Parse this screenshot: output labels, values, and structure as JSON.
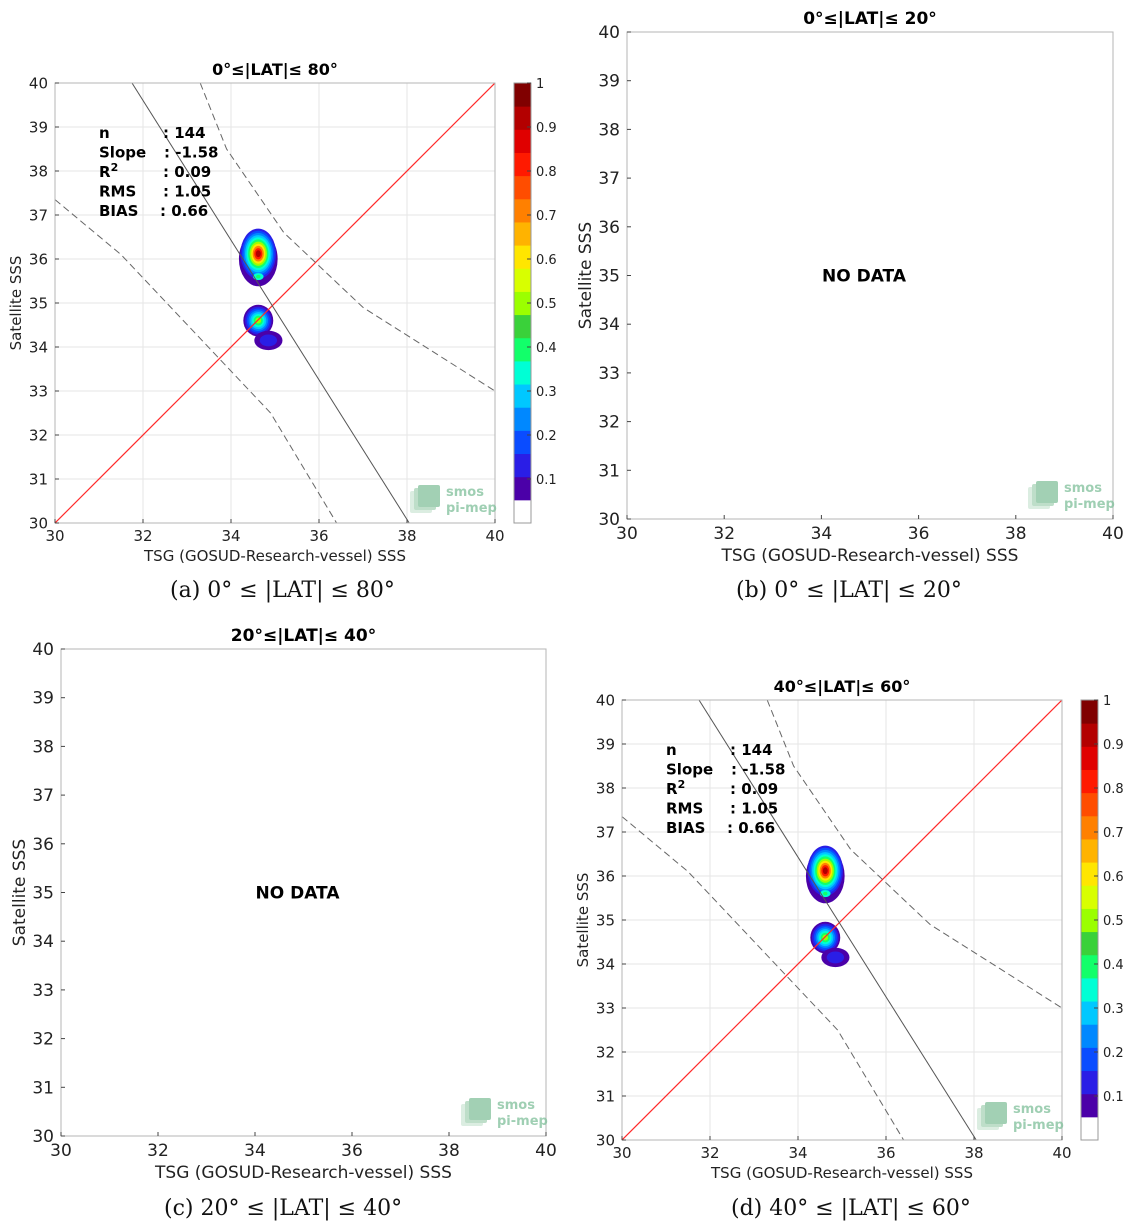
{
  "figure": {
    "watermark": {
      "line1": "smos",
      "line2": "pi-mep"
    },
    "colorbar": {
      "ticks": [
        "0.1",
        "0.2",
        "0.3",
        "0.4",
        "0.5",
        "0.6",
        "0.7",
        "0.8",
        "0.9",
        "1"
      ]
    }
  },
  "chart_data": [
    {
      "id": "a",
      "type": "heatmap",
      "title": "0°≤|LAT|≤ 80°",
      "caption": "(a) 0° ≤ |LAT| ≤ 80°",
      "xlabel": "TSG (GOSUD-Research-vessel) SSS",
      "ylabel": "Satellite SSS",
      "xlim": [
        30,
        40
      ],
      "ylim": [
        30,
        40
      ],
      "xticks": [
        "30",
        "32",
        "34",
        "36",
        "38",
        "40"
      ],
      "yticks": [
        "30",
        "31",
        "32",
        "33",
        "34",
        "35",
        "36",
        "37",
        "38",
        "39",
        "40"
      ],
      "grid": true,
      "stats": [
        {
          "label": "n",
          "value": ": 144"
        },
        {
          "label": "Slope",
          "value": ": -1.58"
        },
        {
          "label": "R²",
          "value": ": 0.09"
        },
        {
          "label": "RMS",
          "value": ": 1.05"
        },
        {
          "label": "BIAS",
          "value": ": 0.66"
        }
      ],
      "regression": {
        "slope": -1.58,
        "points": [
          [
            31.75,
            40
          ],
          [
            38.05,
            30
          ]
        ]
      },
      "confidence_upper": [
        [
          33.3,
          40
        ],
        [
          33.9,
          38.5
        ],
        [
          35.2,
          36.6
        ],
        [
          37.0,
          34.9
        ],
        [
          40,
          33.0
        ]
      ],
      "confidence_lower": [
        [
          30,
          37.35
        ],
        [
          31.5,
          36.1
        ],
        [
          33.2,
          34.3
        ],
        [
          34.9,
          32.5
        ],
        [
          36.4,
          30
        ]
      ],
      "identity_line": [
        [
          30,
          30
        ],
        [
          40,
          40
        ]
      ],
      "density_blobs": [
        {
          "x": 34.62,
          "y": 36.0,
          "peak": 1.0
        },
        {
          "x": 34.62,
          "y": 34.6,
          "peak": 0.7
        },
        {
          "x": 34.85,
          "y": 34.15,
          "peak": 0.15
        }
      ],
      "colorbar_range": [
        0,
        1
      ]
    },
    {
      "id": "b",
      "type": "scatter",
      "title": "0°≤|LAT|≤ 20°",
      "caption": "(b) 0° ≤ |LAT| ≤ 20°",
      "xlabel": "TSG (GOSUD-Research-vessel) SSS",
      "ylabel": "Satellite SSS",
      "xlim": [
        30,
        40
      ],
      "ylim": [
        30,
        40
      ],
      "xticks": [
        "30",
        "32",
        "34",
        "36",
        "38",
        "40"
      ],
      "yticks": [
        "30",
        "31",
        "32",
        "33",
        "34",
        "35",
        "36",
        "37",
        "38",
        "39",
        "40"
      ],
      "message": "NO DATA"
    },
    {
      "id": "c",
      "type": "scatter",
      "title": "20°≤|LAT|≤ 40°",
      "caption": "(c) 20° ≤ |LAT| ≤ 40°",
      "xlabel": "TSG (GOSUD-Research-vessel) SSS",
      "ylabel": "Satellite SSS",
      "xlim": [
        30,
        40
      ],
      "ylim": [
        30,
        40
      ],
      "xticks": [
        "30",
        "32",
        "34",
        "36",
        "38",
        "40"
      ],
      "yticks": [
        "30",
        "31",
        "32",
        "33",
        "34",
        "35",
        "36",
        "37",
        "38",
        "39",
        "40"
      ],
      "message": "NO DATA"
    },
    {
      "id": "d",
      "type": "heatmap",
      "title": "40°≤|LAT|≤ 60°",
      "caption": "(d) 40° ≤ |LAT| ≤ 60°",
      "xlabel": "TSG (GOSUD-Research-vessel) SSS",
      "ylabel": "Satellite SSS",
      "xlim": [
        30,
        40
      ],
      "ylim": [
        30,
        40
      ],
      "xticks": [
        "30",
        "32",
        "34",
        "36",
        "38",
        "40"
      ],
      "yticks": [
        "30",
        "31",
        "32",
        "33",
        "34",
        "35",
        "36",
        "37",
        "38",
        "39",
        "40"
      ],
      "grid": true,
      "stats": [
        {
          "label": "n",
          "value": ": 144"
        },
        {
          "label": "Slope",
          "value": ": -1.58"
        },
        {
          "label": "R²",
          "value": ": 0.09"
        },
        {
          "label": "RMS",
          "value": ": 1.05"
        },
        {
          "label": "BIAS",
          "value": ": 0.66"
        }
      ],
      "regression": {
        "slope": -1.58,
        "points": [
          [
            31.75,
            40
          ],
          [
            38.05,
            30
          ]
        ]
      },
      "confidence_upper": [
        [
          33.3,
          40
        ],
        [
          33.9,
          38.5
        ],
        [
          35.2,
          36.6
        ],
        [
          37.0,
          34.9
        ],
        [
          40,
          33.0
        ]
      ],
      "confidence_lower": [
        [
          30,
          37.35
        ],
        [
          31.5,
          36.1
        ],
        [
          33.2,
          34.3
        ],
        [
          34.9,
          32.5
        ],
        [
          36.4,
          30
        ]
      ],
      "identity_line": [
        [
          30,
          30
        ],
        [
          40,
          40
        ]
      ],
      "density_blobs": [
        {
          "x": 34.62,
          "y": 36.0,
          "peak": 1.0
        },
        {
          "x": 34.62,
          "y": 34.6,
          "peak": 0.7
        },
        {
          "x": 34.85,
          "y": 34.15,
          "peak": 0.15
        }
      ],
      "colorbar_range": [
        0,
        1
      ]
    }
  ]
}
